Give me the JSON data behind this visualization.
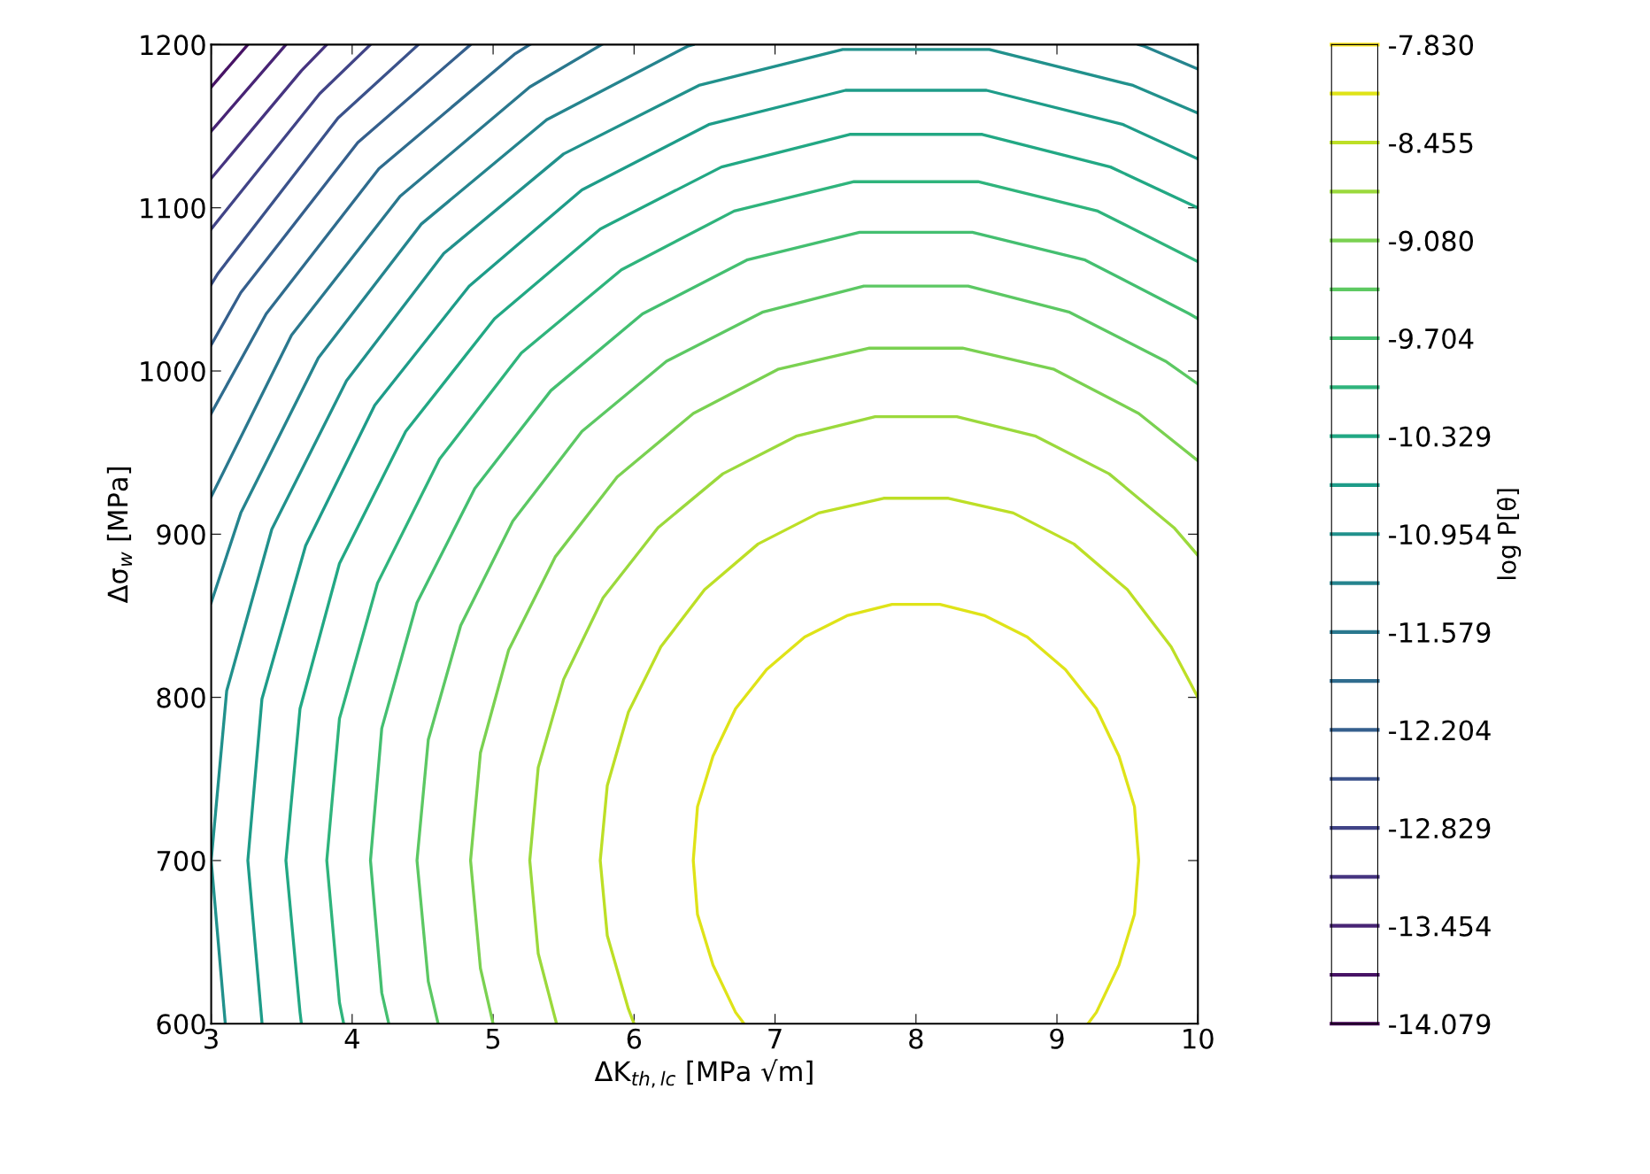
{
  "chart_data": {
    "type": "line",
    "xlabel": "ΔK$_{th,lc}$ [MPa √m]",
    "ylabel": "Δσ$_{w}$ [MPa]",
    "clabel": "log P[θ]",
    "series": [
      {
        "color": "#dfe318",
        "x": [
          9.22,
          9.28,
          9.44,
          9.55,
          9.58,
          9.55,
          9.44,
          9.28,
          9.06,
          8.79,
          8.49,
          8.17,
          7.83,
          7.51,
          7.21,
          6.94,
          6.72,
          6.56,
          6.45,
          6.42,
          6.45,
          6.56,
          6.72,
          6.78
        ],
        "values": [
          600,
          607,
          636,
          667,
          700,
          733,
          764,
          793,
          817,
          837,
          850,
          857,
          857,
          850,
          837,
          817,
          793,
          764,
          733,
          700,
          667,
          636,
          607,
          600
        ]
      },
      {
        "color": "#bddf26",
        "x": [
          10.0,
          9.81,
          9.5,
          9.12,
          8.69,
          8.23,
          7.77,
          7.31,
          6.88,
          6.5,
          6.19,
          5.96,
          5.81,
          5.76,
          5.81,
          5.96,
          6.0
        ],
        "values": [
          800,
          831,
          866,
          894,
          913,
          922,
          922,
          913,
          894,
          866,
          831,
          791,
          746,
          700,
          654,
          609,
          600
        ]
      },
      {
        "color": "#9bd93c",
        "x": [
          10.0,
          9.83,
          9.37,
          8.85,
          8.29,
          7.71,
          7.15,
          6.63,
          6.17,
          5.78,
          5.5,
          5.32,
          5.26,
          5.32,
          5.45
        ],
        "values": [
          887,
          904,
          937,
          960,
          972,
          972,
          960,
          937,
          904,
          861,
          811,
          757,
          700,
          643,
          600
        ]
      },
      {
        "color": "#7ad151",
        "x": [
          10.0,
          9.58,
          8.98,
          8.33,
          7.67,
          7.02,
          6.42,
          5.88,
          5.44,
          5.11,
          4.91,
          4.84,
          4.91,
          5.0
        ],
        "values": [
          945,
          974,
          1001,
          1014,
          1014,
          1001,
          974,
          935,
          886,
          829,
          766,
          700,
          634,
          600
        ]
      },
      {
        "color": "#5cc863",
        "x": [
          10.0,
          9.77,
          9.09,
          8.37,
          7.63,
          6.91,
          6.23,
          5.63,
          5.14,
          4.77,
          4.54,
          4.46,
          4.54,
          4.61
        ],
        "values": [
          992,
          1006,
          1036,
          1052,
          1052,
          1036,
          1006,
          963,
          908,
          844,
          774,
          700,
          626,
          600
        ]
      },
      {
        "color": "#44bf70",
        "x": [
          10.0,
          9.94,
          9.2,
          8.4,
          7.6,
          6.8,
          6.06,
          5.41,
          4.87,
          4.46,
          4.21,
          4.13,
          4.21,
          4.26
        ],
        "values": [
          1032,
          1035,
          1068,
          1085,
          1085,
          1068,
          1035,
          988,
          928,
          858,
          781,
          700,
          619,
          600
        ]
      },
      {
        "color": "#2fb47c",
        "x": [
          10.0,
          9.29,
          8.44,
          7.56,
          6.71,
          5.91,
          5.2,
          4.62,
          4.18,
          3.91,
          3.82,
          3.91,
          3.94
        ],
        "values": [
          1067,
          1098,
          1116,
          1116,
          1098,
          1062,
          1011,
          946,
          870,
          787,
          700,
          613,
          600
        ]
      },
      {
        "color": "#22a884",
        "x": [
          10.0,
          9.38,
          8.47,
          7.53,
          6.62,
          5.76,
          5.01,
          4.38,
          3.91,
          3.63,
          3.53,
          3.63,
          3.64
        ],
        "values": [
          1100,
          1125,
          1145,
          1145,
          1125,
          1087,
          1032,
          963,
          882,
          793,
          700,
          607,
          600
        ]
      },
      {
        "color": "#1e9c89",
        "x": [
          10.0,
          9.47,
          8.5,
          7.5,
          6.53,
          5.63,
          4.83,
          4.16,
          3.67,
          3.36,
          3.26,
          3.36,
          3.36
        ],
        "values": [
          1130,
          1151,
          1172,
          1172,
          1151,
          1111,
          1052,
          979,
          893,
          799,
          700,
          601,
          600
        ]
      },
      {
        "color": "#21918c",
        "x": [
          10.0,
          9.54,
          8.52,
          7.48,
          6.46,
          5.5,
          4.65,
          3.96,
          3.43,
          3.11,
          3.0,
          3.1
        ],
        "values": [
          1158,
          1175,
          1197,
          1197,
          1175,
          1133,
          1072,
          994,
          903,
          804,
          700,
          600
        ]
      },
      {
        "color": "#25848e",
        "x": [
          10.0,
          9.62,
          9.58
        ],
        "values": [
          1185,
          1199,
          1200
        ]
      },
      {
        "color": "#25848e",
        "x": [
          6.42,
          6.38,
          5.38,
          4.49,
          3.76,
          3.21,
          3.0
        ],
        "values": [
          1200,
          1199,
          1154,
          1090,
          1008,
          913,
          858
        ]
      },
      {
        "color": "#2a788e",
        "x": [
          5.77,
          5.26,
          4.34,
          3.57,
          3
        ],
        "values": [
          1200,
          1174,
          1107,
          1022,
          923
        ]
      },
      {
        "color": "#2f6c8e",
        "x": [
          5.26,
          5.15,
          4.19,
          3.39,
          3.0
        ],
        "values": [
          1200,
          1194,
          1124,
          1035,
          974
        ]
      },
      {
        "color": "#355f8d",
        "x": [
          4.84,
          4.04,
          3.21,
          3.0
        ],
        "values": [
          1200,
          1140,
          1048,
          1016
        ]
      },
      {
        "color": "#3b528b",
        "x": [
          4.47,
          3.9,
          3.05,
          3.0
        ],
        "values": [
          1200,
          1155,
          1060,
          1053
        ]
      },
      {
        "color": "#414487",
        "x": [
          4.13,
          3.77,
          3.0
        ],
        "values": [
          1200,
          1170,
          1087
        ]
      },
      {
        "color": "#463480",
        "x": [
          3.82,
          3.64,
          3.0
        ],
        "values": [
          1200,
          1184,
          1118
        ]
      },
      {
        "color": "#482475",
        "x": [
          3.53,
          3.51,
          3
        ],
        "values": [
          1200,
          1198,
          1147
        ]
      },
      {
        "color": "#471365",
        "x": [
          3.26,
          3.0
        ],
        "values": [
          1200,
          1174
        ]
      }
    ],
    "xlim": [
      3,
      10
    ],
    "xticks": [
      3,
      4,
      5,
      6,
      7,
      8,
      9,
      10
    ],
    "ylim": [
      600,
      1200
    ],
    "yticks": [
      600,
      700,
      800,
      900,
      1000,
      1100,
      1200
    ],
    "cticks": [
      "-7.830",
      "-8.455",
      "-9.080",
      "-9.704",
      "-10.329",
      "-10.954",
      "-11.579",
      "-12.204",
      "-12.829",
      "-13.454",
      "-14.079"
    ],
    "marker": "none",
    "line_style": "solid",
    "grid": false,
    "legend": false
  }
}
